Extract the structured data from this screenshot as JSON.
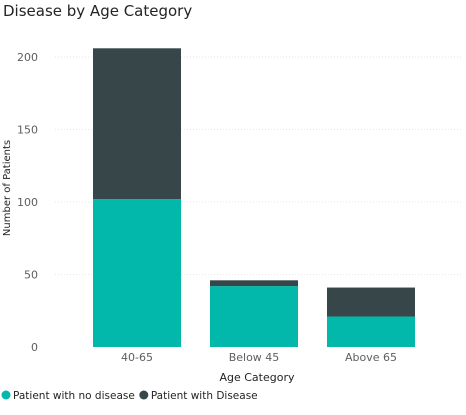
{
  "chart_data": {
    "type": "bar",
    "stacked": true,
    "title": "Disease by Age Category",
    "xlabel": "Age Category",
    "ylabel": "Number of Patients",
    "categories": [
      "40-65",
      "Below 45",
      "Above 65"
    ],
    "series": [
      {
        "name": "Patient with no disease",
        "values": [
          102,
          42,
          21
        ],
        "color": "#01B8AA"
      },
      {
        "name": "Patient with Disease",
        "values": [
          104,
          4,
          20
        ],
        "color": "#374649"
      }
    ],
    "ylim": [
      0,
      206
    ],
    "yticks": [
      0,
      50,
      100,
      150,
      200
    ],
    "grid": true,
    "legend_position": "bottom-left"
  }
}
